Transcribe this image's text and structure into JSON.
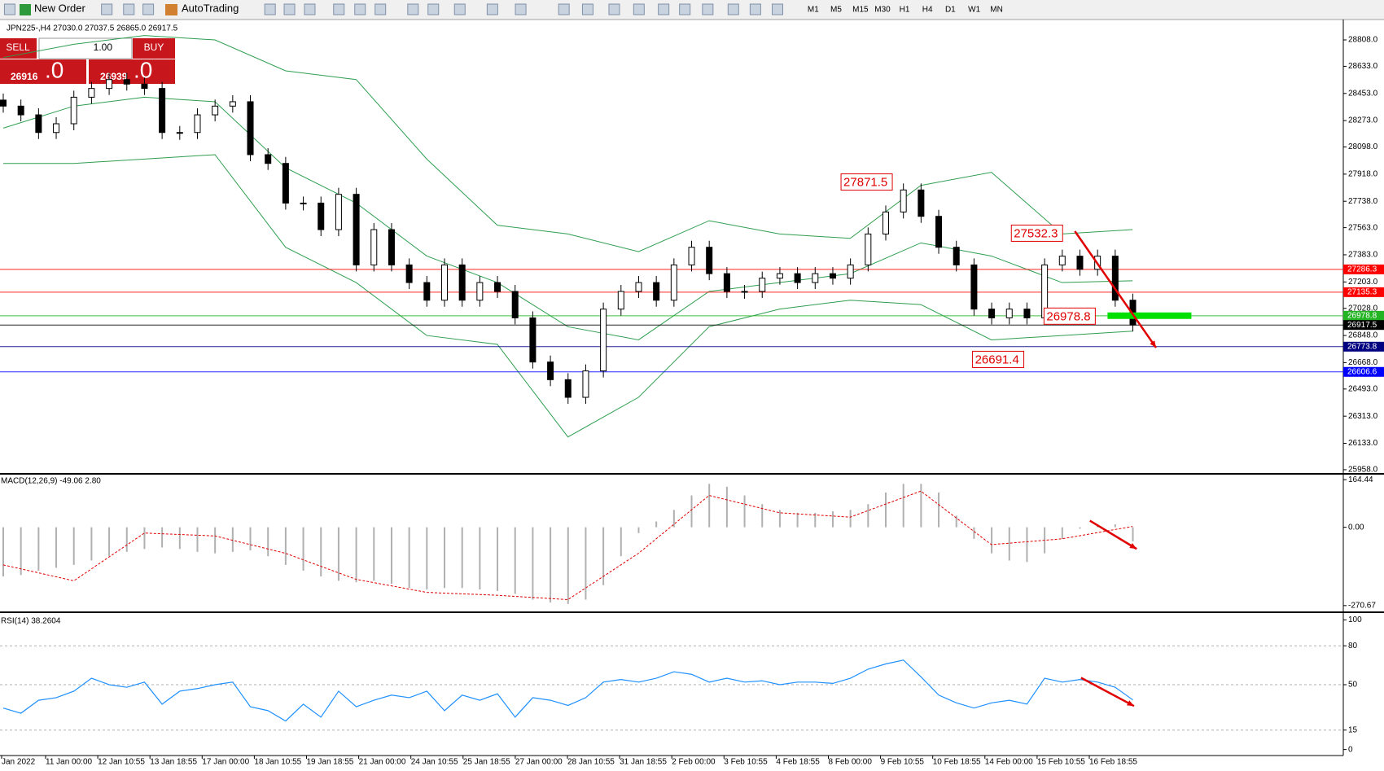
{
  "toolbar": {
    "new_order": "New Order",
    "autotrading": "AutoTrading",
    "timeframes": [
      "M1",
      "M5",
      "M15",
      "M30",
      "H1",
      "H4",
      "D1",
      "W1",
      "MN"
    ]
  },
  "trade_panel": {
    "sell": "SELL",
    "lot": "1.00",
    "buy": "BUY",
    "bid_main": "26916",
    "bid_big": ".0",
    "ask_main": "26939",
    "ask_big": ".0"
  },
  "chart": {
    "header": "JPN225-,H4 27030.0 27037.5 26865.0 26917.5",
    "ylim": [
      25936,
      28943
    ],
    "yticks": [
      {
        "value": 28808,
        "label": "28808.0"
      },
      {
        "value": 28633,
        "label": "28633.0"
      },
      {
        "value": 28453,
        "label": "28453.0"
      },
      {
        "value": 28273,
        "label": "28273.0"
      },
      {
        "value": 28098,
        "label": "28098.0"
      },
      {
        "value": 27918,
        "label": "27918.0"
      },
      {
        "value": 27738,
        "label": "27738.0"
      },
      {
        "value": 27563,
        "label": "27563.0"
      },
      {
        "value": 27383,
        "label": "27383.0"
      },
      {
        "value": 27203,
        "label": "27203.0"
      },
      {
        "value": 27028,
        "label": "27028.0"
      },
      {
        "value": 26848,
        "label": "26848.0"
      },
      {
        "value": 26668,
        "label": "26668.0"
      },
      {
        "value": 26493,
        "label": "26493.0"
      },
      {
        "value": 26313,
        "label": "26313.0"
      },
      {
        "value": 26133,
        "label": "26133.0"
      },
      {
        "value": 25958,
        "label": "25958.0"
      }
    ],
    "closes": [
      28369,
      28311,
      28194,
      28252,
      28428,
      28486,
      28545,
      28515,
      28486,
      28194,
      28194,
      28311,
      28369,
      28398,
      28047,
      27989,
      27726,
      27726,
      27550,
      27784,
      27316,
      27550,
      27316,
      27199,
      27082,
      27316,
      27082,
      27199,
      27140,
      26965,
      26672,
      26555,
      26438,
      26613,
      27023,
      27140,
      27199,
      27082,
      27316,
      27433,
      27258,
      27140,
      27140,
      27228,
      27258,
      27199,
      27258,
      27228,
      27316,
      27521,
      27667,
      27813,
      27638,
      27433,
      27316,
      27023,
      26965,
      27023,
      26965,
      27316,
      27374,
      27287,
      27374,
      27082,
      26917.5
    ],
    "bands": {
      "upper": [
        28691,
        28779,
        28837,
        28808,
        28603,
        28545,
        28018,
        27579,
        27521,
        27404,
        27609,
        27521,
        27492,
        27843,
        27930,
        27521,
        27550
      ],
      "middle": [
        28223,
        28369,
        28428,
        28398,
        27960,
        27726,
        27375,
        27199,
        26906,
        26819,
        27140,
        27199,
        27258,
        27462,
        27375,
        27199,
        27211
      ],
      "lower": [
        27989,
        27989,
        28018,
        28047,
        27433,
        27199,
        26848,
        26789,
        26175,
        26438,
        26906,
        27023,
        27082,
        27053,
        26819,
        26848,
        26877
      ]
    },
    "levels": [
      {
        "value": 27286.3,
        "color": "#ff0000"
      },
      {
        "value": 27135.3,
        "color": "#ff0000"
      },
      {
        "value": 26978.8,
        "color": "#22b422"
      },
      {
        "value": 26917.5,
        "color": "#000000"
      },
      {
        "value": 26773.8,
        "color": "#000080"
      },
      {
        "value": 26606.6,
        "color": "#0000ff"
      }
    ],
    "annotations": [
      27871.5,
      27532.3,
      26978.8,
      26691.4
    ],
    "dates": [
      "Jan 2022",
      "11 Jan 00:00",
      "12 Jan 10:55",
      "13 Jan 18:55",
      "17 Jan 00:00",
      "18 Jan 10:55",
      "19 Jan 18:55",
      "21 Jan 00:00",
      "24 Jan 10:55",
      "25 Jan 18:55",
      "27 Jan 00:00",
      "28 Jan 10:55",
      "31 Jan 18:55",
      "2 Feb 00:00",
      "3 Feb 10:55",
      "4 Feb 18:55",
      "8 Feb 00:00",
      "9 Feb 10:55",
      "10 Feb 18:55",
      "14 Feb 00:00",
      "15 Feb 10:55",
      "16 Feb 18:55"
    ]
  },
  "macd": {
    "label": "MACD(12,26,9) -49.06 2.80",
    "ylim": [
      -288,
      179
    ],
    "yticks": [
      164.44,
      {
        "value": 0,
        "label": "0.00"
      },
      -270.67
    ],
    "histogram": [
      -170,
      -165,
      -150,
      -140,
      -130,
      -115,
      -100,
      -85,
      -75,
      -70,
      -75,
      -85,
      -90,
      -85,
      -80,
      -100,
      -130,
      -150,
      -170,
      -185,
      -190,
      -185,
      -195,
      -210,
      -215,
      -210,
      -210,
      -215,
      -220,
      -230,
      -250,
      -260,
      -265,
      -250,
      -200,
      -100,
      -20,
      20,
      60,
      110,
      150,
      140,
      110,
      80,
      60,
      50,
      50,
      55,
      60,
      80,
      120,
      150,
      150,
      120,
      40,
      -40,
      -90,
      -115,
      -120,
      -90,
      -40,
      -5,
      10,
      10,
      -49.06
    ],
    "signal": [
      -130,
      -185,
      -20,
      -30,
      -90,
      -180,
      -225,
      -235,
      -250,
      -90,
      110,
      50,
      35,
      125,
      -60,
      -40,
      2.8
    ]
  },
  "rsi": {
    "label": "RSI(14) 38.2604",
    "ylim": [
      -4,
      104
    ],
    "yticks": [
      100,
      80,
      50,
      15,
      0
    ],
    "values": [
      32,
      28,
      38,
      40,
      45,
      55,
      50,
      48,
      52,
      35,
      45,
      47,
      50,
      52,
      33,
      30,
      22,
      35,
      25,
      45,
      33,
      38,
      42,
      40,
      45,
      30,
      42,
      38,
      43,
      25,
      40,
      38,
      34,
      40,
      52,
      54,
      52,
      55,
      60,
      58,
      52,
      55,
      52,
      53,
      50,
      52,
      52,
      51,
      55,
      62,
      66,
      69,
      56,
      42,
      36,
      32,
      36,
      38,
      35,
      55,
      52,
      54,
      52,
      48,
      38.2604
    ]
  }
}
